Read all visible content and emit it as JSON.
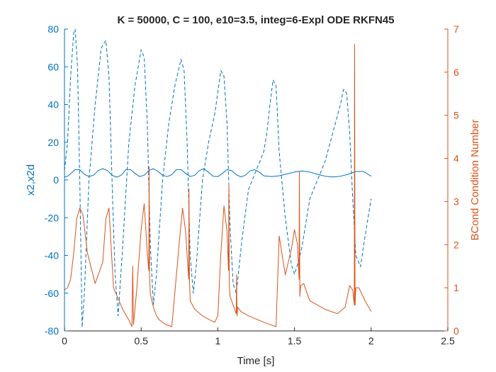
{
  "chart_data": {
    "type": "line",
    "title": "K = 50000, C = 100, e10=3.5, integ=6-Expl ODE RKFN45",
    "xlabel": "Time [s]",
    "ylabel_left": "x2,x2d",
    "ylabel_right": "BCond Condition Number",
    "xlim": [
      0,
      2.5
    ],
    "ylim_left": [
      -80,
      80
    ],
    "ylim_right": [
      0,
      7
    ],
    "xticks": [
      "0",
      "0.5",
      "1",
      "1.5",
      "2",
      "2.5"
    ],
    "yticks_left": [
      "-80",
      "-60",
      "-40",
      "-20",
      "0",
      "20",
      "40",
      "60",
      "80"
    ],
    "yticks_right": [
      "0",
      "1",
      "2",
      "3",
      "4",
      "5",
      "6",
      "7"
    ],
    "grid": false,
    "colors": {
      "left_axis": "#0072BD",
      "right_axis": "#D95319",
      "text": "#262626"
    },
    "series": [
      {
        "axis": "left",
        "style": "solid",
        "color": "#0072BD",
        "x": [
          0,
          0.02,
          0.05,
          0.07,
          0.1,
          0.13,
          0.16,
          0.19,
          0.22,
          0.25,
          0.28,
          0.31,
          0.34,
          0.37,
          0.4,
          0.43,
          0.46,
          0.49,
          0.52,
          0.55,
          0.58,
          0.61,
          0.64,
          0.67,
          0.7,
          0.73,
          0.76,
          0.79,
          0.82,
          0.85,
          0.88,
          0.91,
          0.94,
          0.97,
          1.0,
          1.03,
          1.06,
          1.09,
          1.12,
          1.15,
          1.18,
          1.21,
          1.24,
          1.27,
          1.3,
          1.35,
          1.4,
          1.45,
          1.5,
          1.55,
          1.6,
          1.65,
          1.7,
          1.75,
          1.8,
          1.85,
          1.9,
          1.95,
          2.0
        ],
        "y": [
          1.5,
          2,
          4,
          5.5,
          5.5,
          3,
          1.8,
          2.5,
          5,
          6,
          5,
          2.5,
          1.5,
          2.5,
          5.5,
          5.5,
          3.5,
          1.8,
          2.5,
          5,
          6,
          4.5,
          2.5,
          1.8,
          2.8,
          5.5,
          5.5,
          3.5,
          1.8,
          2.5,
          5,
          6,
          4,
          2,
          1.8,
          3.5,
          5.5,
          5,
          2.8,
          1.6,
          2.5,
          4.8,
          5.5,
          4.2,
          2.2,
          1.8,
          2.2,
          3.2,
          4.2,
          4.8,
          4.2,
          3,
          2,
          1.6,
          2,
          3,
          4.5,
          4.5,
          2
        ]
      },
      {
        "axis": "left",
        "style": "dashed",
        "color": "#0072BD",
        "x": [
          0,
          0.02,
          0.04,
          0.06,
          0.07,
          0.085,
          0.1,
          0.115,
          0.13,
          0.16,
          0.2,
          0.24,
          0.27,
          0.29,
          0.31,
          0.33,
          0.35,
          0.38,
          0.42,
          0.46,
          0.5,
          0.52,
          0.54,
          0.56,
          0.58,
          0.6,
          0.64,
          0.68,
          0.72,
          0.76,
          0.78,
          0.8,
          0.82,
          0.84,
          0.86,
          0.9,
          0.94,
          0.98,
          1.02,
          1.04,
          1.06,
          1.08,
          1.1,
          1.12,
          1.16,
          1.2,
          1.25,
          1.3,
          1.32,
          1.34,
          1.36,
          1.38,
          1.4,
          1.44,
          1.48,
          1.5,
          1.53,
          1.55,
          1.57,
          1.6,
          1.65,
          1.7,
          1.75,
          1.8,
          1.82,
          1.84,
          1.86,
          1.88,
          1.9,
          1.93,
          1.96,
          2.0
        ],
        "y": [
          5,
          20,
          55,
          78,
          80,
          60,
          0,
          -78,
          -60,
          0,
          40,
          70,
          74,
          55,
          0,
          -50,
          -72,
          -35,
          20,
          50,
          69,
          65,
          30,
          -35,
          -66,
          -50,
          0,
          30,
          50,
          64,
          58,
          20,
          -40,
          -60,
          -45,
          0,
          20,
          35,
          58,
          55,
          30,
          -25,
          -55,
          -60,
          -30,
          -5,
          5,
          15,
          25,
          40,
          53,
          50,
          15,
          -20,
          -45,
          -50,
          -42,
          -35,
          -25,
          -10,
          0,
          10,
          25,
          40,
          48,
          46,
          25,
          -10,
          -40,
          -46,
          -30,
          -10
        ]
      },
      {
        "axis": "right",
        "style": "solid",
        "color": "#D95319",
        "x": [
          0,
          0.02,
          0.04,
          0.06,
          0.08,
          0.1,
          0.12,
          0.15,
          0.2,
          0.25,
          0.27,
          0.29,
          0.31,
          0.32,
          0.35,
          0.38,
          0.42,
          0.44,
          0.445,
          0.45,
          0.47,
          0.5,
          0.52,
          0.54,
          0.55,
          0.552,
          0.555,
          0.56,
          0.58,
          0.6,
          0.62,
          0.66,
          0.7,
          0.72,
          0.75,
          0.77,
          0.79,
          0.81,
          0.812,
          0.815,
          0.82,
          0.85,
          0.9,
          0.95,
          0.98,
          1.0,
          1.02,
          1.04,
          1.06,
          1.07,
          1.072,
          1.075,
          1.08,
          1.1,
          1.12,
          1.122,
          1.125,
          1.13,
          1.15,
          1.2,
          1.3,
          1.38,
          1.4,
          1.44,
          1.48,
          1.5,
          1.52,
          1.53,
          1.532,
          1.535,
          1.54,
          1.56,
          1.6,
          1.7,
          1.78,
          1.83,
          1.86,
          1.88,
          1.89,
          1.892,
          1.895,
          1.9,
          1.92,
          1.96,
          2.0
        ],
        "y": [
          0.95,
          1.0,
          1.2,
          1.8,
          2.6,
          2.85,
          2.7,
          1.8,
          1.1,
          1.6,
          2.6,
          2.85,
          1.6,
          1.0,
          0.75,
          0.5,
          0.25,
          0.1,
          1.5,
          0.15,
          0.9,
          2.35,
          2.95,
          1.8,
          1.4,
          3.8,
          1.3,
          0.85,
          0.55,
          0.35,
          0.25,
          0.15,
          0.1,
          0.9,
          2.1,
          2.85,
          2.3,
          1.2,
          3.3,
          1.2,
          0.7,
          0.5,
          0.35,
          0.25,
          0.2,
          0.35,
          1.8,
          2.9,
          2.3,
          1.4,
          3.4,
          1.1,
          0.8,
          0.6,
          0.4,
          1.3,
          0.35,
          0.55,
          0.45,
          0.35,
          0.2,
          0.1,
          2.2,
          1.3,
          1.9,
          2.35,
          2.0,
          1.2,
          3.7,
          0.8,
          1.05,
          1.1,
          0.7,
          0.5,
          0.4,
          0.55,
          1.05,
          0.95,
          0.6,
          6.65,
          0.6,
          1.0,
          1.0,
          0.7,
          0.45
        ]
      }
    ]
  }
}
